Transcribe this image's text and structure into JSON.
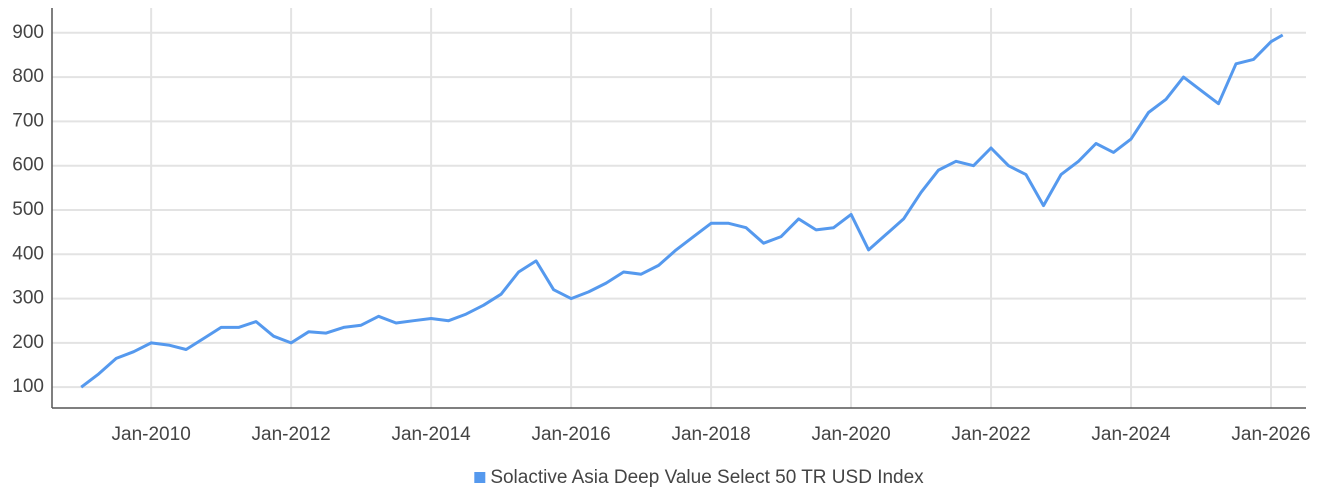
{
  "chart_data": {
    "type": "line",
    "x": [
      "Jan-2009",
      "Apr-2009",
      "Jul-2009",
      "Oct-2009",
      "Jan-2010",
      "Apr-2010",
      "Jul-2010",
      "Oct-2010",
      "Jan-2011",
      "Apr-2011",
      "Jul-2011",
      "Oct-2011",
      "Jan-2012",
      "Apr-2012",
      "Jul-2012",
      "Oct-2012",
      "Jan-2013",
      "Apr-2013",
      "Jul-2013",
      "Oct-2013",
      "Jan-2014",
      "Apr-2014",
      "Jul-2014",
      "Oct-2014",
      "Jan-2015",
      "Apr-2015",
      "Jul-2015",
      "Oct-2015",
      "Jan-2016",
      "Apr-2016",
      "Jul-2016",
      "Oct-2016",
      "Jan-2017",
      "Apr-2017",
      "Jul-2017",
      "Oct-2017",
      "Jan-2018",
      "Apr-2018",
      "Jul-2018",
      "Oct-2018",
      "Jan-2019",
      "Apr-2019",
      "Jul-2019",
      "Oct-2019",
      "Jan-2020",
      "Apr-2020",
      "Jul-2020",
      "Oct-2020",
      "Jan-2021",
      "Apr-2021",
      "Jul-2021",
      "Oct-2021",
      "Jan-2022",
      "Apr-2022",
      "Jul-2022",
      "Oct-2022",
      "Jan-2023",
      "Apr-2023",
      "Jul-2023",
      "Oct-2023",
      "Jan-2024",
      "Apr-2024",
      "Jul-2024",
      "Oct-2024",
      "Jan-2025",
      "Apr-2025",
      "Jul-2025",
      "Oct-2025",
      "Jan-2026",
      "Mar-2026"
    ],
    "series": [
      {
        "name": "Solactive Asia Deep Value Select 50 TR USD Index",
        "color": "#5599ee",
        "values": [
          100,
          130,
          165,
          180,
          200,
          195,
          185,
          210,
          235,
          235,
          248,
          215,
          200,
          225,
          222,
          235,
          240,
          260,
          245,
          250,
          255,
          250,
          265,
          285,
          310,
          360,
          385,
          320,
          300,
          315,
          335,
          360,
          355,
          375,
          410,
          440,
          470,
          470,
          460,
          425,
          440,
          480,
          455,
          460,
          490,
          410,
          445,
          480,
          540,
          590,
          610,
          600,
          640,
          600,
          580,
          510,
          580,
          610,
          650,
          630,
          660,
          720,
          750,
          800,
          770,
          740,
          830,
          840,
          880,
          895
        ]
      }
    ],
    "xlim": [
      "Aug-2008",
      "Jul-2026"
    ],
    "xticks": [
      "Jan-2010",
      "Jan-2012",
      "Jan-2014",
      "Jan-2016",
      "Jan-2018",
      "Jan-2020",
      "Jan-2022",
      "Jan-2024",
      "Jan-2026"
    ],
    "ylim": [
      53,
      956
    ],
    "yticks": [
      100,
      200,
      300,
      400,
      500,
      600,
      700,
      800,
      900
    ],
    "grid": true,
    "legend": "bottom"
  }
}
